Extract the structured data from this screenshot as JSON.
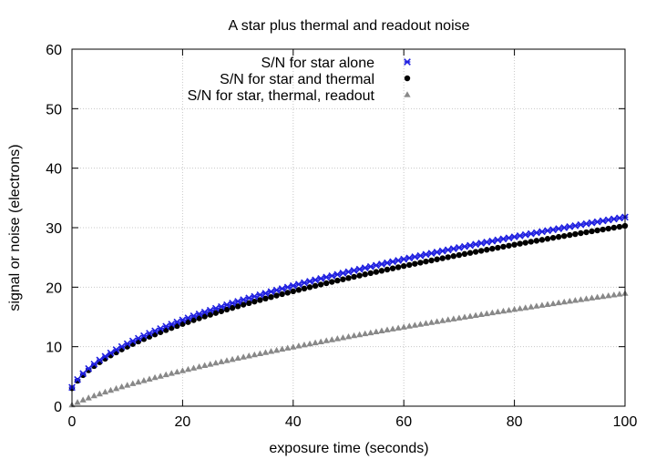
{
  "chart_data": {
    "type": "scatter",
    "title": "A star plus thermal and readout noise",
    "xlabel": "exposure time (seconds)",
    "ylabel": "signal or noise (electrons)",
    "xlim": [
      0,
      100
    ],
    "ylim": [
      0,
      60
    ],
    "x_ticks": [
      "0",
      "20",
      "40",
      "60",
      "80",
      "100"
    ],
    "y_ticks": [
      "0",
      "10",
      "20",
      "30",
      "40",
      "50",
      "60"
    ],
    "grid": true,
    "legend_position": "top-right",
    "x": [
      0,
      1,
      2,
      3,
      4,
      5,
      6,
      7,
      8,
      9,
      10,
      11,
      12,
      13,
      14,
      15,
      16,
      17,
      18,
      19,
      20,
      21,
      22,
      23,
      24,
      25,
      26,
      27,
      28,
      29,
      30,
      31,
      32,
      33,
      34,
      35,
      36,
      37,
      38,
      39,
      40,
      41,
      42,
      43,
      44,
      45,
      46,
      47,
      48,
      49,
      50,
      51,
      52,
      53,
      54,
      55,
      56,
      57,
      58,
      59,
      60,
      61,
      62,
      63,
      64,
      65,
      66,
      67,
      68,
      69,
      70,
      71,
      72,
      73,
      74,
      75,
      76,
      77,
      78,
      79,
      80,
      81,
      82,
      83,
      84,
      85,
      86,
      87,
      88,
      89,
      90,
      91,
      92,
      93,
      94,
      95,
      96,
      97,
      98,
      99,
      100
    ],
    "series": [
      {
        "name": "S/N for star alone",
        "marker": "star",
        "color": "#1f1fe0",
        "values": [
          3.16,
          4.47,
          5.48,
          6.32,
          7.07,
          7.75,
          8.37,
          8.94,
          9.49,
          10.0,
          10.49,
          10.95,
          11.4,
          11.83,
          12.25,
          12.65,
          13.04,
          13.42,
          13.78,
          14.14,
          14.49,
          14.83,
          15.17,
          15.49,
          15.81,
          16.12,
          16.43,
          16.73,
          17.03,
          17.32,
          17.61,
          17.89,
          18.17,
          18.44,
          18.71,
          18.97,
          19.24,
          19.49,
          19.75,
          20.0,
          20.25,
          20.49,
          20.74,
          20.98,
          21.21,
          21.45,
          21.68,
          21.91,
          22.14,
          22.36,
          22.58,
          22.8,
          23.02,
          23.24,
          23.45,
          23.66,
          23.87,
          24.08,
          24.29,
          24.49,
          24.7,
          24.9,
          25.1,
          25.3,
          25.5,
          25.69,
          25.88,
          26.08,
          26.27,
          26.46,
          26.65,
          26.83,
          27.02,
          27.2,
          27.39,
          27.57,
          27.75,
          27.93,
          28.11,
          28.28,
          28.46,
          28.64,
          28.81,
          28.98,
          29.15,
          29.33,
          29.5,
          29.66,
          29.83,
          30.0,
          30.17,
          30.33,
          30.5,
          30.66,
          30.82,
          30.98,
          31.14,
          31.3,
          31.46,
          31.62,
          31.78
        ]
      },
      {
        "name": "S/N for star and thermal",
        "marker": "circle",
        "color": "#000000",
        "values": [
          3.02,
          4.27,
          5.22,
          6.03,
          6.74,
          7.39,
          7.98,
          8.53,
          9.04,
          9.54,
          10.0,
          10.45,
          10.87,
          11.28,
          11.68,
          12.06,
          12.43,
          12.79,
          13.14,
          13.48,
          13.82,
          14.14,
          14.46,
          14.77,
          15.08,
          15.37,
          15.67,
          15.95,
          16.24,
          16.51,
          16.79,
          17.06,
          17.32,
          17.58,
          17.84,
          18.09,
          18.34,
          18.59,
          18.83,
          19.07,
          19.31,
          19.54,
          19.77,
          20.0,
          20.23,
          20.45,
          20.67,
          20.89,
          21.11,
          21.32,
          21.53,
          21.74,
          21.95,
          22.16,
          22.36,
          22.56,
          22.76,
          22.96,
          23.16,
          23.35,
          23.55,
          23.74,
          23.93,
          24.12,
          24.31,
          24.49,
          24.68,
          24.86,
          25.04,
          25.22,
          25.4,
          25.58,
          25.76,
          25.94,
          26.11,
          26.29,
          26.46,
          26.63,
          26.8,
          26.97,
          27.14,
          27.31,
          27.47,
          27.64,
          27.8,
          27.96,
          28.13,
          28.29,
          28.45,
          28.6,
          28.76,
          28.92,
          29.08,
          29.23,
          29.39,
          29.54,
          29.69,
          29.84,
          30.0,
          30.15,
          30.3
        ]
      },
      {
        "name": "S/N for star, thermal, readout",
        "marker": "triangle",
        "color": "#888888",
        "values": [
          0.2,
          0.63,
          1.02,
          1.38,
          1.73,
          2.05,
          2.36,
          2.66,
          2.95,
          3.24,
          3.51,
          3.78,
          4.04,
          4.29,
          4.54,
          4.79,
          5.03,
          5.27,
          5.5,
          5.73,
          5.95,
          6.18,
          6.39,
          6.61,
          6.82,
          7.03,
          7.24,
          7.45,
          7.65,
          7.85,
          8.05,
          8.24,
          8.44,
          8.63,
          8.82,
          9.01,
          9.2,
          9.38,
          9.57,
          9.75,
          9.93,
          10.11,
          10.29,
          10.46,
          10.64,
          10.81,
          10.99,
          11.16,
          11.33,
          11.5,
          11.66,
          11.83,
          12.0,
          12.16,
          12.32,
          12.49,
          12.65,
          12.81,
          12.97,
          13.12,
          13.28,
          13.44,
          13.59,
          13.75,
          13.9,
          14.05,
          14.21,
          14.36,
          14.51,
          14.66,
          14.81,
          14.95,
          15.1,
          15.25,
          15.39,
          15.54,
          15.68,
          15.83,
          15.97,
          16.11,
          16.25,
          16.39,
          16.53,
          16.67,
          16.81,
          16.95,
          17.09,
          17.22,
          17.36,
          17.5,
          17.63,
          17.77,
          17.9,
          18.03,
          18.17,
          18.3,
          18.43,
          18.56,
          18.69,
          18.82,
          18.95
        ]
      }
    ]
  }
}
